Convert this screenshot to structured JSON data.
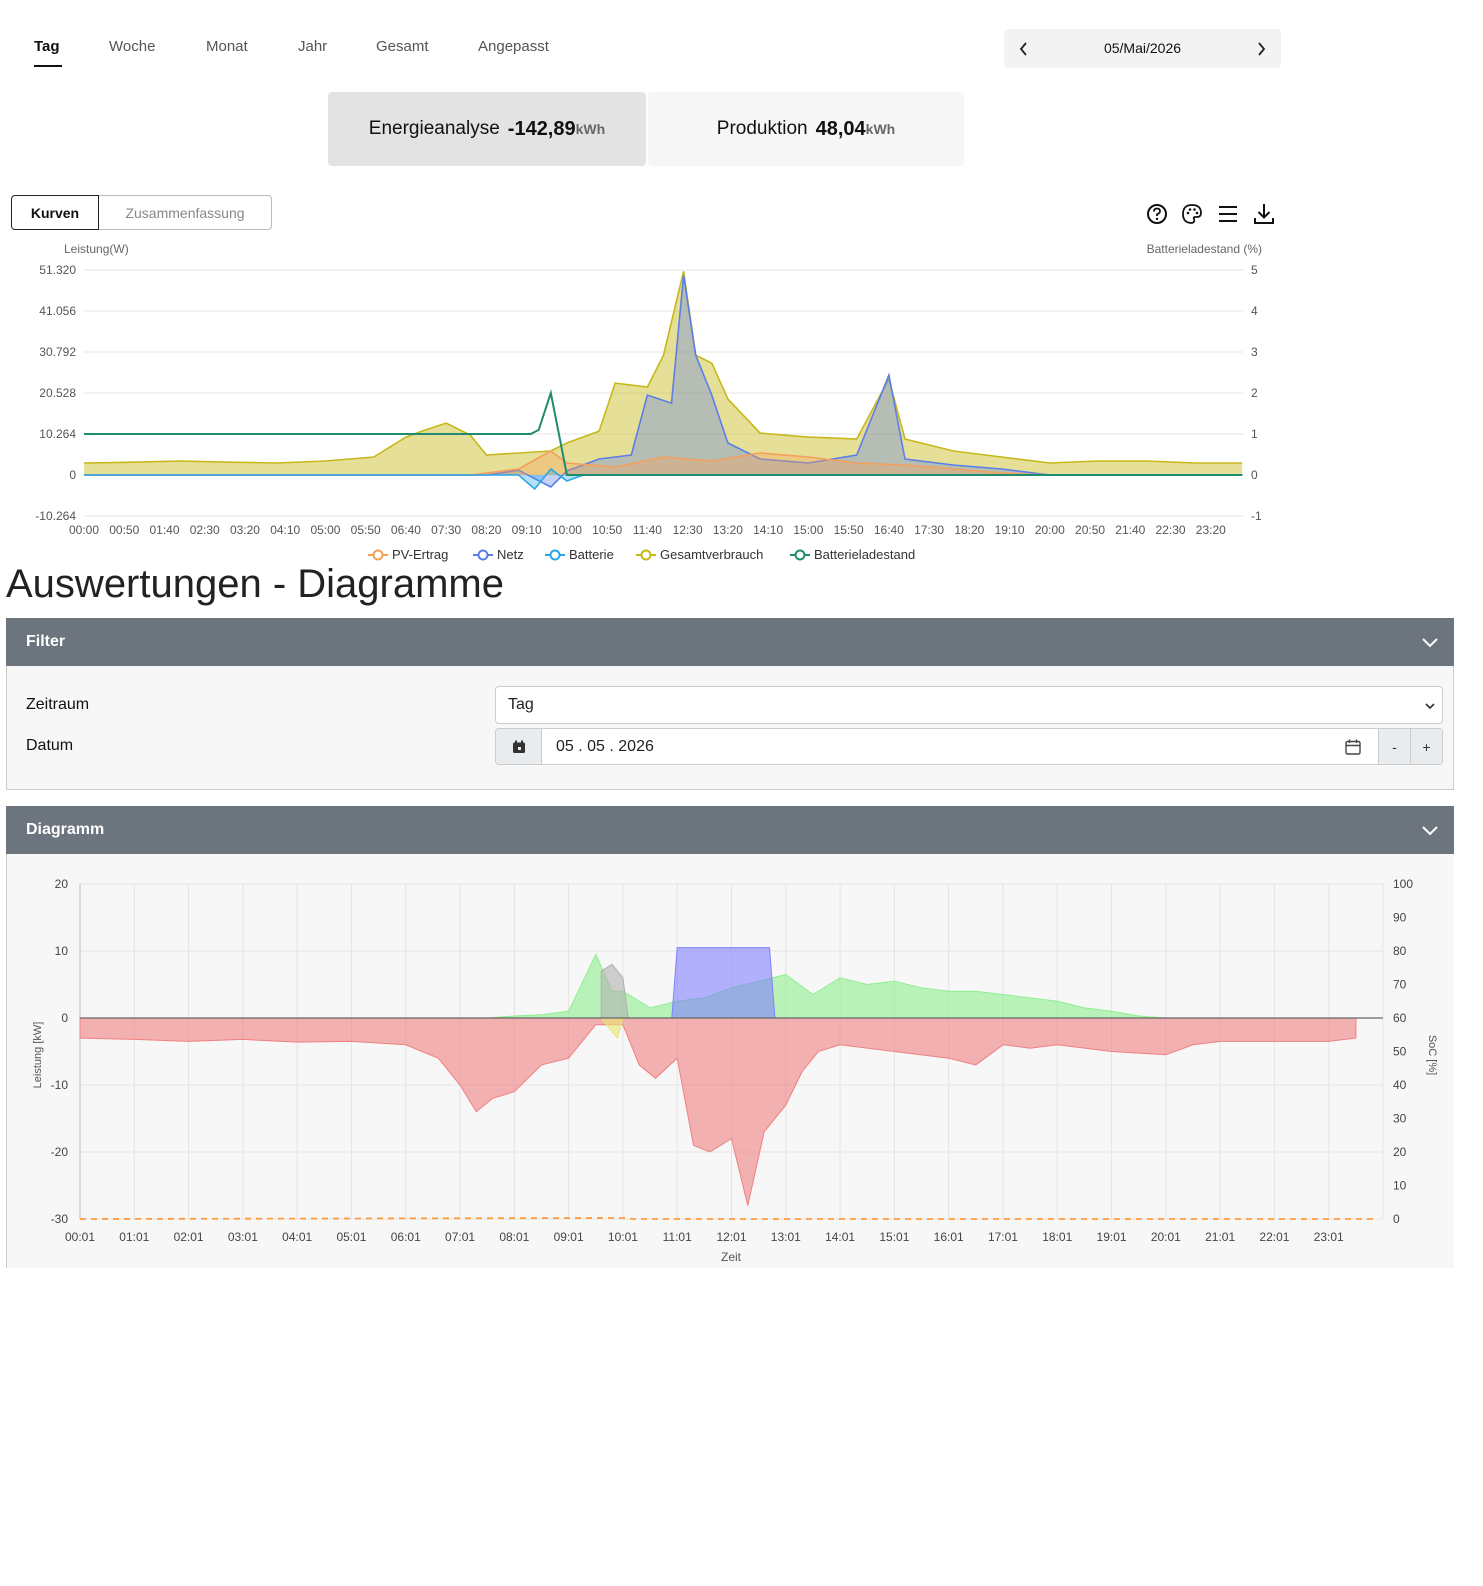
{
  "tabs": [
    "Tag",
    "Woche",
    "Monat",
    "Jahr",
    "Gesamt",
    "Angepasst"
  ],
  "date_nav": {
    "label": "05/Mai/2026"
  },
  "cards": [
    {
      "label": "Energieanalyse",
      "value": "-142,89",
      "unit": "kWh"
    },
    {
      "label": "Produktion",
      "value": "48,04",
      "unit": "kWh"
    }
  ],
  "view_toggle": [
    "Kurven",
    "Zusammenfassung"
  ],
  "tool_icons": [
    "help-icon",
    "palette-icon",
    "menu-icon",
    "download-icon"
  ],
  "chart_data": [
    {
      "type": "area",
      "ylabel": "Leistung(W)",
      "y2label": "Batterieladestand (%)",
      "y_ticks": [
        "51.320",
        "41.056",
        "30.792",
        "20.528",
        "10.264",
        "0",
        "-10.264"
      ],
      "y2_ticks": [
        "5",
        "4",
        "3",
        "2",
        "1",
        "0",
        "-1"
      ],
      "x_ticks": [
        "00:00",
        "00:50",
        "01:40",
        "02:30",
        "03:20",
        "04:10",
        "05:00",
        "05:50",
        "06:40",
        "07:30",
        "08:20",
        "09:10",
        "10:00",
        "10:50",
        "11:40",
        "12:30",
        "13:20",
        "14:10",
        "15:00",
        "15:50",
        "16:40",
        "17:30",
        "18:20",
        "19:10",
        "20:00",
        "20:50",
        "21:40",
        "22:30",
        "23:20"
      ],
      "ylim": [
        -10264,
        51320
      ],
      "y2lim": [
        -1,
        5
      ],
      "legend_position": "bottom",
      "grid": true,
      "series": [
        {
          "name": "PV-Ertrag",
          "color": "#f5a05a",
          "x": [
            "00:00",
            "08:00",
            "09:00",
            "09:40",
            "10:00",
            "11:00",
            "12:00",
            "13:00",
            "14:00",
            "15:00",
            "16:00",
            "17:00",
            "18:00",
            "19:00",
            "20:00",
            "23:59"
          ],
          "values": [
            0,
            0,
            1500,
            6000,
            3000,
            2000,
            4500,
            3500,
            5500,
            4500,
            3000,
            2500,
            1500,
            500,
            0,
            0
          ]
        },
        {
          "name": "Netz",
          "color": "#5b7fe8",
          "x": [
            "00:00",
            "08:20",
            "09:00",
            "09:40",
            "10:00",
            "10:40",
            "11:20",
            "11:40",
            "12:10",
            "12:25",
            "12:40",
            "13:00",
            "13:20",
            "14:00",
            "15:00",
            "16:00",
            "16:40",
            "17:00",
            "18:00",
            "19:00",
            "20:00",
            "23:59"
          ],
          "values": [
            0,
            0,
            1200,
            -3000,
            1000,
            4000,
            5000,
            20000,
            18000,
            50000,
            30000,
            20000,
            8000,
            4000,
            3000,
            5000,
            25000,
            4000,
            2500,
            1500,
            0,
            0
          ]
        },
        {
          "name": "Batterie",
          "color": "#29a6e6",
          "x": [
            "00:00",
            "09:00",
            "09:20",
            "09:40",
            "10:00",
            "10:20",
            "23:59"
          ],
          "values": [
            0,
            0,
            -3500,
            1500,
            -1500,
            0,
            0
          ]
        },
        {
          "name": "Gesamtverbrauch",
          "color": "#c7b81a",
          "x": [
            "00:00",
            "01:00",
            "02:00",
            "03:00",
            "04:00",
            "05:00",
            "06:00",
            "06:40",
            "07:00",
            "07:30",
            "08:00",
            "08:20",
            "09:00",
            "09:40",
            "10:00",
            "10:40",
            "11:00",
            "11:40",
            "12:00",
            "12:25",
            "12:40",
            "13:00",
            "13:20",
            "14:00",
            "15:00",
            "16:00",
            "16:40",
            "17:00",
            "18:00",
            "19:00",
            "20:00",
            "21:00",
            "22:00",
            "23:00",
            "23:59"
          ],
          "values": [
            3000,
            3200,
            3500,
            3200,
            3000,
            3500,
            4500,
            9500,
            11000,
            13000,
            10000,
            5000,
            5500,
            6000,
            8000,
            11000,
            23000,
            22000,
            30000,
            51000,
            30000,
            28000,
            19000,
            10500,
            9500,
            9000,
            24000,
            9000,
            6000,
            4500,
            3000,
            3500,
            3500,
            3000,
            3000
          ]
        },
        {
          "name": "Batterieladestand",
          "color": "#1e8c6e",
          "x": [
            "00:00",
            "09:15",
            "09:25",
            "09:40",
            "09:50",
            "10:00",
            "10:10",
            "23:59"
          ],
          "values": [
            1,
            1,
            1.1,
            2,
            1,
            0,
            0,
            0
          ]
        }
      ]
    },
    {
      "type": "area",
      "xlabel": "Zeit",
      "ylabel": "Leistung [kW]",
      "y2label": "SoC [%]",
      "y_ticks": [
        "20",
        "10",
        "0",
        "-10",
        "-20",
        "-30"
      ],
      "y2_ticks": [
        "100",
        "90",
        "80",
        "70",
        "60",
        "50",
        "40",
        "30",
        "20",
        "10",
        "0"
      ],
      "x_ticks": [
        "00:01",
        "01:01",
        "02:01",
        "03:01",
        "04:01",
        "05:01",
        "06:01",
        "07:01",
        "08:01",
        "09:01",
        "10:01",
        "11:01",
        "12:01",
        "13:01",
        "14:01",
        "15:01",
        "16:01",
        "17:01",
        "18:01",
        "19:01",
        "20:01",
        "21:01",
        "22:01",
        "23:01"
      ],
      "ylim": [
        -30,
        20
      ],
      "y2lim": [
        0,
        100
      ],
      "grid": true,
      "series": [
        {
          "name": "",
          "color": "#f08080",
          "x": [
            0,
            1,
            2,
            3,
            4,
            5,
            6,
            6.3,
            6.6,
            7,
            7.3,
            7.6,
            8,
            8.5,
            9,
            9.5,
            10,
            10.3,
            10.6,
            11,
            11.3,
            11.6,
            12,
            12.3,
            12.6,
            13,
            13.3,
            13.6,
            14,
            15,
            16,
            16.5,
            17,
            17.5,
            18,
            19,
            20,
            20.5,
            21,
            22,
            23,
            23.5
          ],
          "values": [
            -3,
            -3.2,
            -3.5,
            -3.2,
            -3.6,
            -3.5,
            -4,
            -5,
            -6,
            -10,
            -14,
            -12,
            -11,
            -7,
            -6,
            -1,
            -1,
            -7,
            -9,
            -6,
            -19,
            -20,
            -18,
            -28,
            -17,
            -13,
            -8,
            -5,
            -4,
            -5,
            -6,
            -7,
            -4,
            -4.5,
            -4,
            -5,
            -5.5,
            -4,
            -3.5,
            -3.5,
            -3.5,
            -3
          ]
        },
        {
          "name": "",
          "color": "#90ee90",
          "x": [
            7.5,
            8,
            8.5,
            9,
            9.5,
            9.8,
            10,
            10.5,
            11,
            11.5,
            12,
            12.5,
            13,
            13.5,
            14,
            14.5,
            15,
            15.5,
            16,
            16.5,
            17,
            17.5,
            18,
            18.5,
            19,
            19.5,
            20
          ],
          "values": [
            0,
            0.3,
            0.5,
            1,
            9.5,
            4,
            4,
            1.5,
            2.5,
            3,
            4.5,
            5.5,
            6.5,
            3.5,
            6,
            5,
            5.5,
            4.5,
            4,
            4,
            3.5,
            3,
            2.5,
            1.5,
            1,
            0.3,
            0
          ]
        },
        {
          "name": "",
          "color": "#8080ff",
          "x": [
            10.9,
            11,
            11.5,
            12,
            12.5,
            12.7,
            12.8
          ],
          "values": [
            0,
            10.5,
            10.5,
            10.5,
            10.5,
            10.5,
            0
          ]
        },
        {
          "name": "",
          "color": "#b0b0b0",
          "x": [
            9.6,
            9.8,
            10,
            10.1
          ],
          "values": [
            7,
            8,
            6,
            0
          ]
        },
        {
          "name": "",
          "color": "#e8e870",
          "x": [
            9.6,
            9.8,
            9.9,
            10
          ],
          "values": [
            0,
            -2,
            -3,
            0
          ]
        },
        {
          "name": "",
          "color": "#ff9a3c",
          "x": [
            0,
            10,
            10.2,
            23.9
          ],
          "values": [
            0,
            0.5,
            0,
            0
          ]
        }
      ]
    }
  ],
  "main_title": "Auswertungen - Diagramme",
  "filter_panel": {
    "title": "Filter",
    "zeitraum_label": "Zeitraum",
    "zeitraum_value": "Tag",
    "datum_label": "Datum",
    "datum_value": "05 . 05 . 2026",
    "minus": "-",
    "plus": "+"
  },
  "diagram_panel": {
    "title": "Diagramm"
  }
}
